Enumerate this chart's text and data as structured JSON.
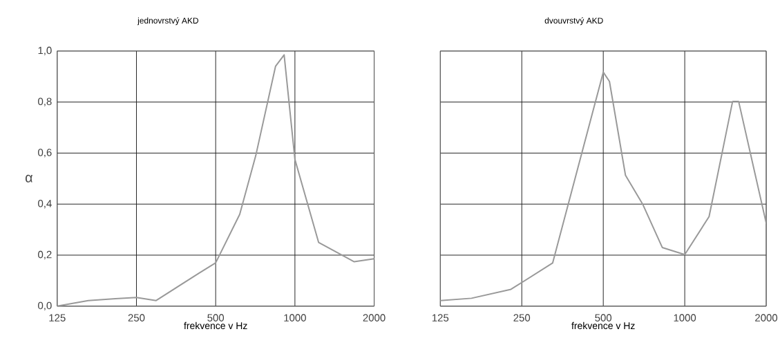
{
  "chart_data": [
    {
      "type": "line",
      "title": "jednovrstvý AKD",
      "xlabel": "frekvence v Hz",
      "ylabel": "α",
      "color": "#999999",
      "log": "x",
      "grid": true,
      "xlim": [
        125,
        2000
      ],
      "ylim": [
        0,
        1
      ],
      "xticks": [
        125,
        250,
        500,
        1000,
        2000
      ],
      "yticks": [
        {
          "value": 0,
          "label": "0,0"
        },
        {
          "value": 0.2,
          "label": "0,2"
        },
        {
          "value": 0.4,
          "label": "0,4"
        },
        {
          "value": 0.6,
          "label": "0,6"
        },
        {
          "value": 0.8,
          "label": "0,8"
        },
        {
          "value": 1,
          "label": "1,0"
        }
      ],
      "x": [
        125,
        164,
        208,
        250,
        297,
        433,
        500,
        617,
        710,
        844,
        910,
        1000,
        1230,
        1680,
        2000
      ],
      "values": [
        0.0,
        0.022,
        0.029,
        0.034,
        0.022,
        0.13,
        0.17,
        0.36,
        0.59,
        0.94,
        0.985,
        0.575,
        0.25,
        0.174,
        0.186
      ]
    },
    {
      "type": "line",
      "title": "dvouvrstvý AKD",
      "xlabel": "frekvence v Hz",
      "color": "#999999",
      "log": "x",
      "grid": true,
      "tick_labels": "x",
      "xlim": [
        125,
        2000
      ],
      "ylim": [
        0,
        1
      ],
      "xticks": [
        125,
        250,
        500,
        1000,
        2000
      ],
      "yticks": [
        {
          "value": 0,
          "label": null
        },
        {
          "value": 0.2,
          "label": null
        },
        {
          "value": 0.4,
          "label": null
        },
        {
          "value": 0.6,
          "label": null
        },
        {
          "value": 0.8,
          "label": null
        },
        {
          "value": 1,
          "label": null
        }
      ],
      "x": [
        125,
        163,
        228,
        325,
        500,
        527,
        604,
        699,
        826,
        1000,
        1230,
        1502,
        1582,
        2000
      ],
      "values": [
        0.022,
        0.031,
        0.066,
        0.169,
        0.917,
        0.881,
        0.513,
        0.4,
        0.23,
        0.202,
        0.351,
        0.802,
        0.802,
        0.325
      ]
    }
  ]
}
